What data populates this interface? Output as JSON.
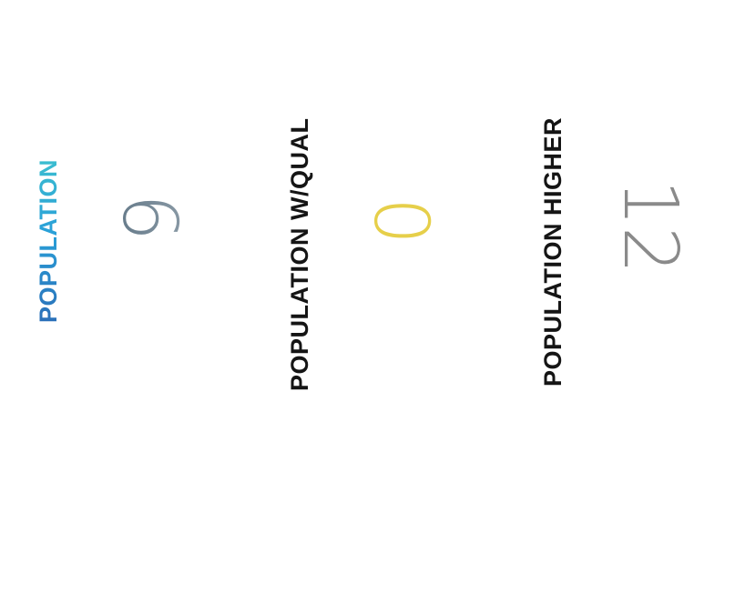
{
  "stats": [
    {
      "label": "POPULATION",
      "value": "6"
    },
    {
      "label": "POPULATION W/QUAL",
      "value": "0"
    },
    {
      "label": "POPULATION HIGHER",
      "value": "12"
    }
  ],
  "colors": {
    "label_accent_start": "#2a6fb8",
    "label_accent_end": "#3bbdd0",
    "label_dark": "#151515",
    "value_1": "#6b7f8d",
    "value_2": "#e6cf4a",
    "value_3": "#8a8a8a",
    "background": "#ffffff"
  }
}
